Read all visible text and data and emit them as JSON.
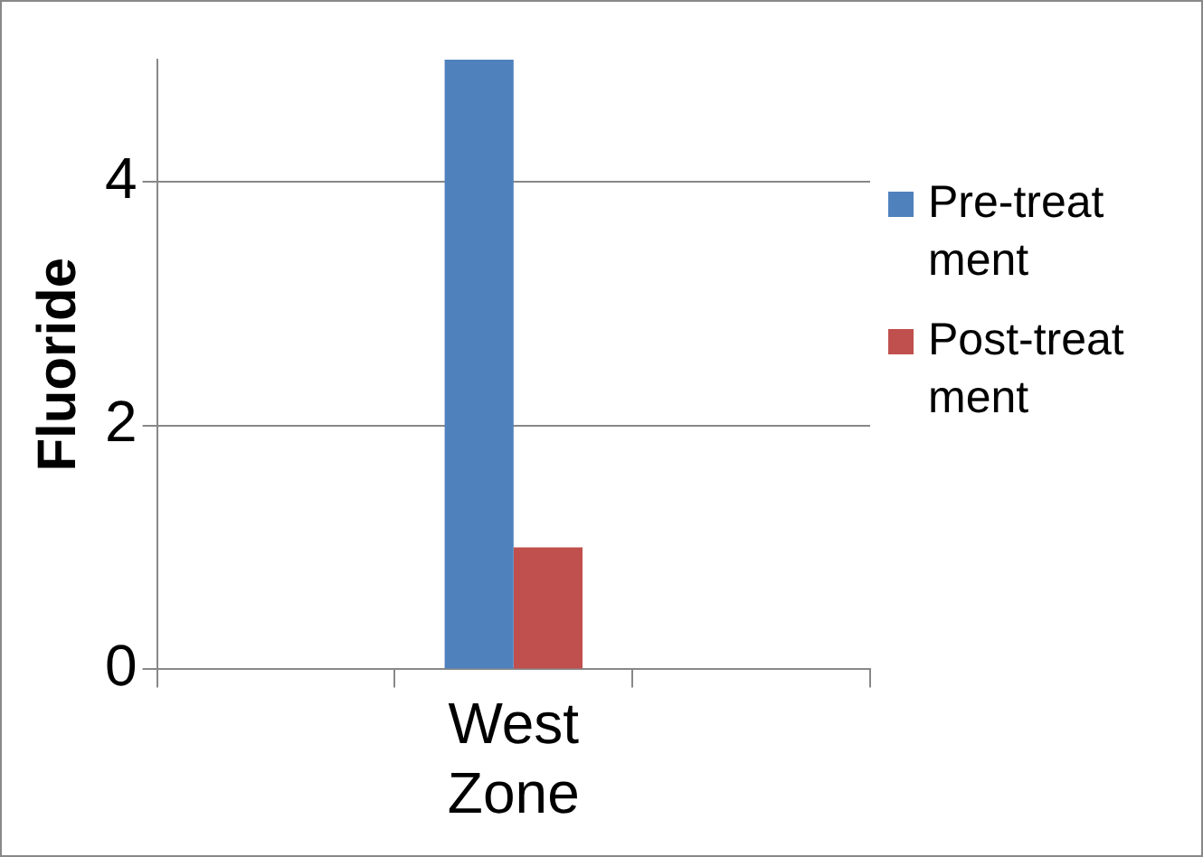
{
  "chart_data": {
    "type": "bar",
    "ylabel": "Fluoride",
    "categories": [
      null,
      "West Zone",
      null
    ],
    "series": [
      {
        "name": "Pre-treatment",
        "color": "#4f81bd",
        "values": [
          null,
          5,
          null
        ]
      },
      {
        "name": "Post-treatment",
        "color": "#c0504d",
        "values": [
          null,
          1,
          null
        ]
      }
    ],
    "ylim": [
      0,
      5
    ],
    "yticks": [
      0,
      2,
      4
    ],
    "grid": "y",
    "legend": "right"
  }
}
